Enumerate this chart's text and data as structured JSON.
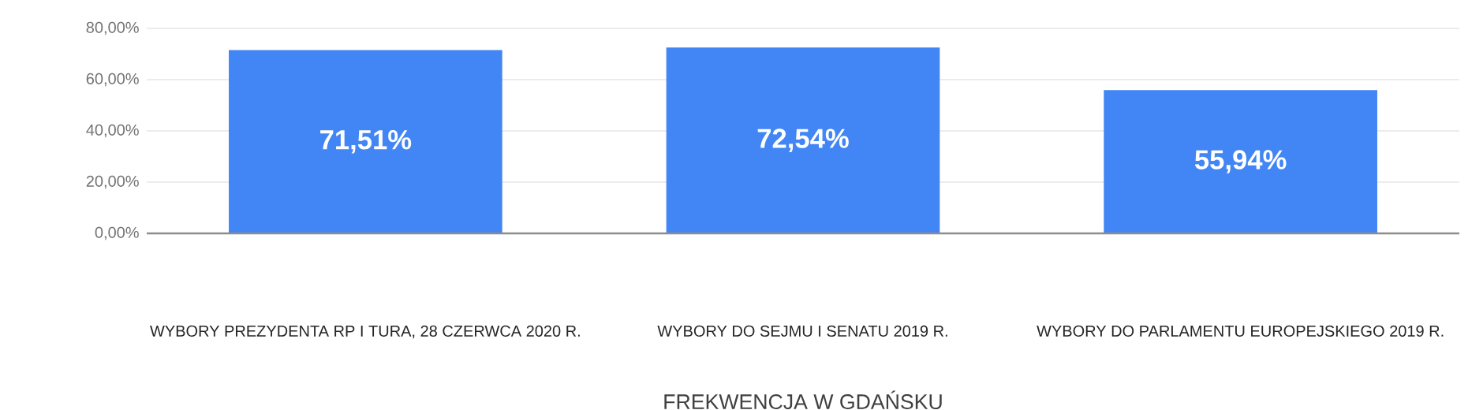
{
  "chart_data": {
    "type": "bar",
    "xlabel": "FREKWENCJA W GDAŃSKU",
    "categories": [
      "WYBORY PREZYDENTA RP I TURA, 28 CZERWCA 2020 R.",
      "WYBORY DO SEJMU I SENATU 2019 R.",
      "WYBORY DO PARLAMENTU EUROPEJSKIEGO 2019 R."
    ],
    "values": [
      71.51,
      72.54,
      55.94
    ],
    "value_labels": [
      "71,51%",
      "72,54%",
      "55,94%"
    ],
    "color": "#4285f4",
    "ylim": [
      0,
      80
    ],
    "yticks": [
      {
        "value": 0,
        "label": "0,00%"
      },
      {
        "value": 20,
        "label": "20,00%"
      },
      {
        "value": 40,
        "label": "40,00%"
      },
      {
        "value": 60,
        "label": "60,00%"
      },
      {
        "value": 80,
        "label": "80,00%"
      }
    ],
    "grid": "y"
  }
}
